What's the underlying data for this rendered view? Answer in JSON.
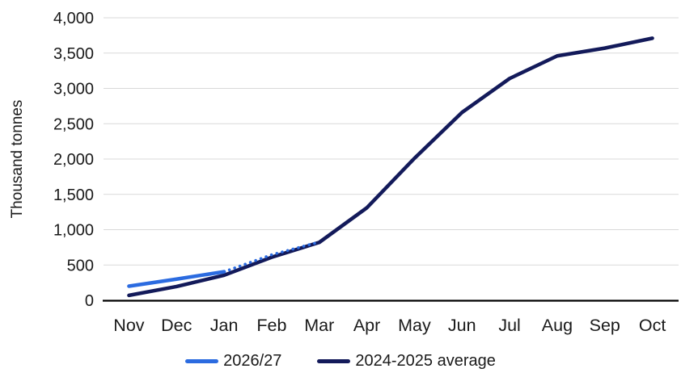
{
  "figure": {
    "background_color": "#ffffff"
  },
  "chart_data": {
    "type": "line",
    "title": "",
    "xlabel": "",
    "ylabel": "Thousand tonnes",
    "categories": [
      "Nov",
      "Dec",
      "Jan",
      "Feb",
      "Mar",
      "Apr",
      "May",
      "Jun",
      "Jul",
      "Aug",
      "Sep",
      "Oct"
    ],
    "ylim": [
      0,
      4000
    ],
    "ytick_step": 500,
    "ytick_labels": [
      "0",
      "500",
      "1,000",
      "1,500",
      "2,000",
      "2,500",
      "3,000",
      "3,500",
      "4,000"
    ],
    "grid": "horizontal",
    "gridline_color": "#d9d9d9",
    "axis_line_color": "#000000",
    "tick_label_color": "#1a1a1a",
    "legend_position": "bottom",
    "series": [
      {
        "name": "2026/27",
        "color": "#2b6be0",
        "style": "solid",
        "in_legend": true,
        "z": 1,
        "values": [
          200,
          300,
          405,
          null,
          null,
          null,
          null,
          null,
          null,
          null,
          null,
          null
        ]
      },
      {
        "name": "2026/27 projection",
        "color": "#2b6be0",
        "style": "dotted",
        "in_legend": false,
        "z": 2,
        "values": [
          null,
          null,
          405,
          645,
          825,
          null,
          null,
          null,
          null,
          null,
          null,
          null
        ]
      },
      {
        "name": "2024-2025 average",
        "color": "#131a5a",
        "style": "solid",
        "in_legend": true,
        "z": 0,
        "values": [
          70,
          195,
          355,
          610,
          820,
          1310,
          2010,
          2660,
          3140,
          3460,
          3570,
          3710
        ]
      }
    ]
  }
}
